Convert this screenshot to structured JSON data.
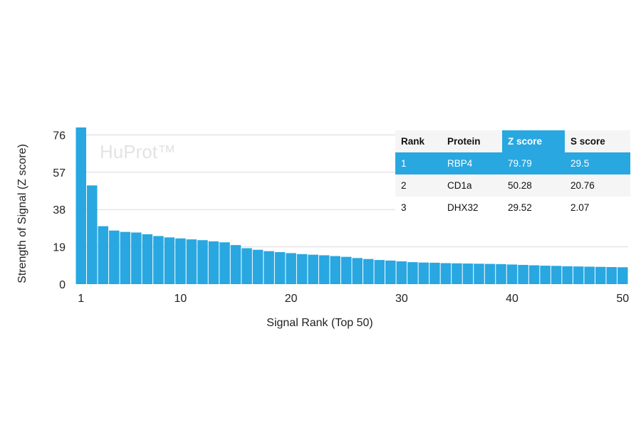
{
  "chart_data": {
    "type": "bar",
    "watermark": "HuProt™",
    "xlabel": "Signal Rank (Top 50)",
    "ylabel": "Strength of Signal (Z score)",
    "xlim": [
      1,
      50
    ],
    "ylim": [
      0,
      79.79
    ],
    "yticks": [
      0,
      19,
      38,
      57,
      76
    ],
    "xticks": [
      1,
      10,
      20,
      30,
      40,
      50
    ],
    "grid": true,
    "color": "#29a7e1",
    "x": [
      1,
      2,
      3,
      4,
      5,
      6,
      7,
      8,
      9,
      10,
      11,
      12,
      13,
      14,
      15,
      16,
      17,
      18,
      19,
      20,
      21,
      22,
      23,
      24,
      25,
      26,
      27,
      28,
      29,
      30,
      31,
      32,
      33,
      34,
      35,
      36,
      37,
      38,
      39,
      40,
      41,
      42,
      43,
      44,
      45,
      46,
      47,
      48,
      49,
      50
    ],
    "values": [
      79.79,
      50.28,
      29.52,
      27.3,
      26.6,
      26.3,
      25.4,
      24.5,
      23.8,
      23.3,
      22.8,
      22.4,
      21.8,
      21.3,
      19.9,
      18.3,
      17.5,
      16.8,
      16.3,
      15.8,
      15.3,
      15.0,
      14.7,
      14.3,
      13.9,
      13.3,
      12.8,
      12.3,
      12.0,
      11.6,
      11.2,
      11.0,
      10.9,
      10.7,
      10.6,
      10.5,
      10.4,
      10.3,
      10.2,
      10.0,
      9.8,
      9.6,
      9.4,
      9.3,
      9.1,
      9.0,
      8.9,
      8.8,
      8.7,
      8.6
    ]
  },
  "table": {
    "headers": [
      "Rank",
      "Protein",
      "Z score",
      "S score"
    ],
    "rows": [
      [
        "1",
        "RBP4",
        "79.79",
        "29.5"
      ],
      [
        "2",
        "CD1a",
        "50.28",
        "20.76"
      ],
      [
        "3",
        "DHX32",
        "29.52",
        "2.07"
      ]
    ]
  }
}
